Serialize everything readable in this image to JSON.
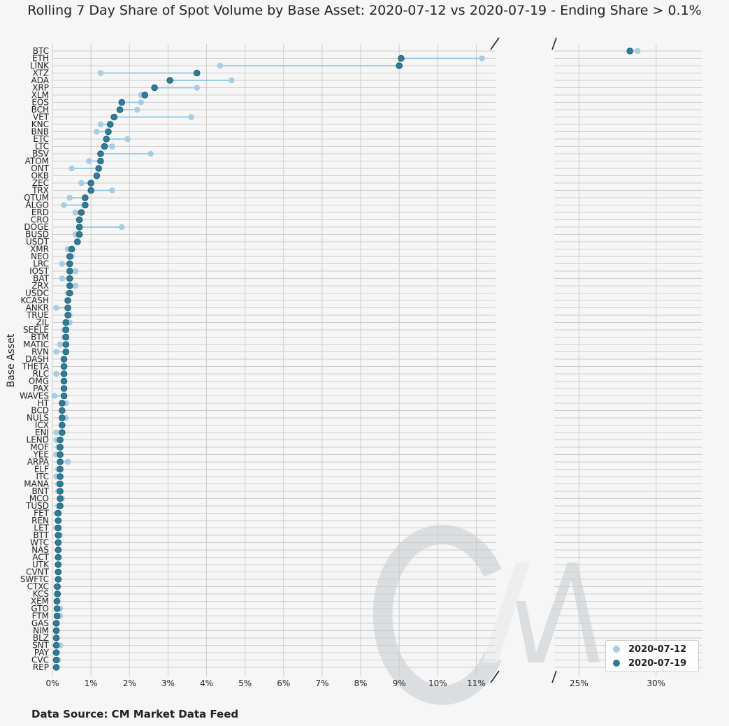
{
  "title": "Rolling 7 Day Share of Spot Volume by Base Asset: 2020-07-12 vs 2020-07-19 - Ending Share > 0.1%",
  "source": "Data Source: CM Market Data Feed",
  "watermark": "CM",
  "colors": {
    "series_a": "#a6cde3",
    "series_b": "#2f7b98",
    "line": "#8cc7e6",
    "grid": "#cccccc"
  },
  "chart_data": {
    "type": "scatter",
    "subtype": "dumbbell",
    "title": "Rolling 7 Day Share of Spot Volume by Base Asset: 2020-07-12 vs 2020-07-19 - Ending Share > 0.1%",
    "xlabel": "",
    "ylabel": "Base Asset",
    "x_format": "percent",
    "broken_axis": {
      "left_xlim": [
        0,
        11.5
      ],
      "right_xlim": [
        23.4,
        33
      ],
      "left_ticks": [
        0,
        1,
        2,
        3,
        4,
        5,
        6,
        7,
        8,
        9,
        10,
        11
      ],
      "right_ticks": [
        25,
        30
      ]
    },
    "legend_position": "bottom-right",
    "grid": true,
    "categories": [
      "BTC",
      "ETH",
      "LINK",
      "XTZ",
      "ADA",
      "XRP",
      "XLM",
      "EOS",
      "BCH",
      "VET",
      "KNC",
      "BNB",
      "ETC",
      "LTC",
      "BSV",
      "ATOM",
      "ONT",
      "OKB",
      "ZEC",
      "TRX",
      "QTUM",
      "ALGO",
      "ERD",
      "CRO",
      "DOGE",
      "BUSD",
      "USDT",
      "XMR",
      "NEO",
      "LRC",
      "IOST",
      "BAT",
      "ZRX",
      "USDC",
      "KCASH",
      "ANKR",
      "TRUE",
      "ZIL",
      "SEELE",
      "BTM",
      "MATIC",
      "RVN",
      "DASH",
      "THETA",
      "RLC",
      "OMG",
      "PAX",
      "WAVES",
      "HT",
      "BCD",
      "NULS",
      "ICX",
      "ENJ",
      "LEND",
      "MOF",
      "YEE",
      "ARPA",
      "ELF",
      "ITC",
      "MANA",
      "BNT",
      "MCO",
      "TUSD",
      "FET",
      "REN",
      "LET",
      "BTT",
      "WTC",
      "NAS",
      "ACT",
      "UTK",
      "CVNT",
      "SWFTC",
      "CTXC",
      "KCS",
      "XEM",
      "GTO",
      "FTM",
      "GAS",
      "NIM",
      "BLZ",
      "SNT",
      "PAY",
      "CVC",
      "REP"
    ],
    "series": [
      {
        "name": "2020-07-12",
        "values": [
          28.8,
          11.15,
          4.35,
          1.25,
          4.65,
          3.75,
          2.3,
          2.3,
          2.2,
          3.6,
          1.25,
          1.15,
          1.95,
          1.55,
          2.55,
          0.95,
          0.5,
          1.15,
          0.75,
          1.55,
          0.45,
          0.3,
          0.6,
          0.7,
          1.8,
          0.6,
          0.65,
          0.4,
          0.5,
          0.25,
          0.6,
          0.25,
          0.6,
          0.4,
          0.4,
          0.1,
          0.45,
          0.45,
          0.3,
          0.3,
          0.2,
          0.1,
          0.3,
          0.3,
          0.1,
          0.3,
          0.3,
          0.05,
          0.35,
          0.25,
          0.35,
          0.25,
          0.1,
          0.1,
          0.15,
          0.1,
          0.4,
          0.15,
          0.1,
          0.15,
          0.15,
          0.25,
          0.15,
          0.1,
          0.15,
          0.1,
          0.2,
          0.15,
          0.15,
          0.15,
          0.15,
          0.15,
          0.15,
          0.1,
          0.15,
          0.1,
          0.2,
          0.2,
          0.1,
          0.1,
          0.1,
          0.2,
          0.1,
          0.15,
          0.1
        ]
      },
      {
        "name": "2020-07-19",
        "values": [
          28.3,
          9.05,
          9.0,
          3.75,
          3.05,
          2.65,
          2.4,
          1.8,
          1.75,
          1.6,
          1.5,
          1.45,
          1.4,
          1.35,
          1.25,
          1.25,
          1.2,
          1.15,
          1.0,
          1.0,
          0.85,
          0.85,
          0.75,
          0.7,
          0.7,
          0.7,
          0.65,
          0.5,
          0.45,
          0.45,
          0.45,
          0.45,
          0.45,
          0.45,
          0.4,
          0.4,
          0.4,
          0.35,
          0.35,
          0.35,
          0.35,
          0.35,
          0.3,
          0.3,
          0.3,
          0.3,
          0.3,
          0.3,
          0.25,
          0.25,
          0.25,
          0.25,
          0.25,
          0.2,
          0.2,
          0.2,
          0.2,
          0.2,
          0.2,
          0.2,
          0.2,
          0.2,
          0.2,
          0.15,
          0.15,
          0.15,
          0.15,
          0.15,
          0.15,
          0.15,
          0.15,
          0.15,
          0.15,
          0.13,
          0.13,
          0.12,
          0.12,
          0.12,
          0.1,
          0.1,
          0.1,
          0.1,
          0.1,
          0.1,
          0.1
        ]
      }
    ]
  }
}
